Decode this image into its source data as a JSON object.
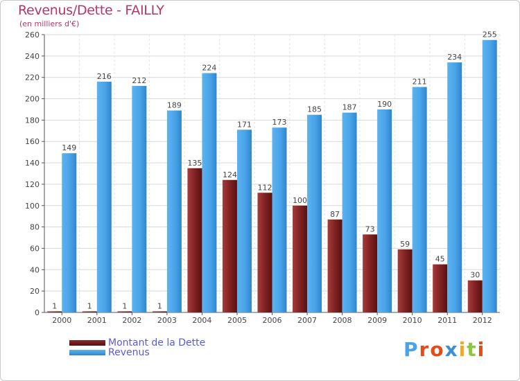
{
  "chart_data": {
    "type": "bar",
    "title": "Revenus/Dette - FAILLY",
    "subtitle": "(en milliers d'€)",
    "xlabel": "",
    "ylabel": "",
    "ylim": [
      0,
      260
    ],
    "yticks": [
      0,
      20,
      40,
      60,
      80,
      100,
      120,
      140,
      160,
      180,
      200,
      220,
      240,
      260
    ],
    "grid": true,
    "categories": [
      "2000",
      "2001",
      "2002",
      "2003",
      "2004",
      "2005",
      "2006",
      "2007",
      "2008",
      "2009",
      "2010",
      "2011",
      "2012"
    ],
    "series": [
      {
        "name": "Montant de la Dette",
        "color": "#7a1f1f",
        "values": [
          1,
          1,
          1,
          1,
          135,
          124,
          112,
          100,
          87,
          73,
          59,
          45,
          30
        ]
      },
      {
        "name": "Revenus",
        "color": "#4aa3e8",
        "values": [
          149,
          216,
          212,
          189,
          224,
          171,
          173,
          185,
          187,
          190,
          211,
          234,
          255
        ]
      }
    ],
    "legend_position": "bottom-left"
  },
  "branding": {
    "logo_text": "Proxiti",
    "logo_colors": [
      "#4aa3e8",
      "#e64a19",
      "#e64a19",
      "#3b8fd6",
      "#f5a623",
      "#8dc63f",
      "#e64a19"
    ]
  }
}
